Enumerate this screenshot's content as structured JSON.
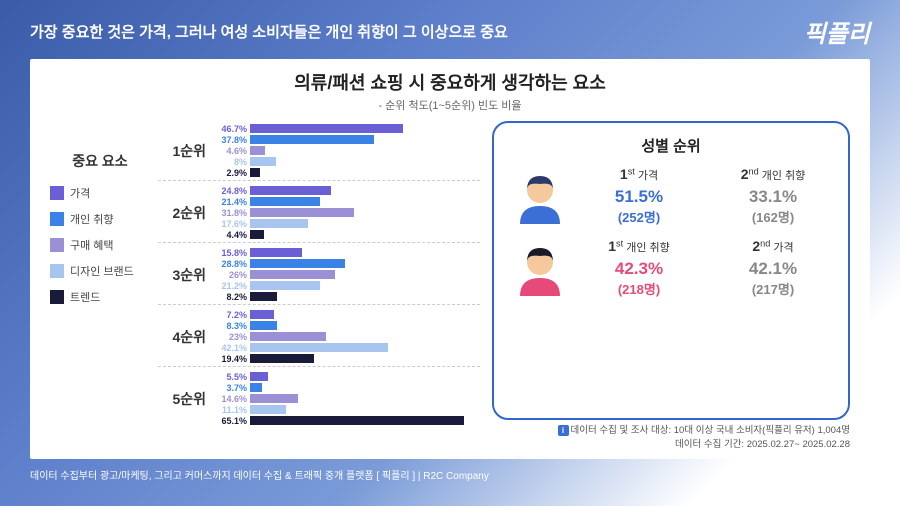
{
  "header": {
    "title": "가장 중요한 것은 가격, 그러나 여성 소비자들은 개인 취향이 그 이상으로 중요",
    "logo": "픽플리"
  },
  "card": {
    "title": "의류/패션 쇼핑 시 중요하게 생각하는 요소",
    "subtitle": "- 순위 척도(1~5순위) 빈도 비율"
  },
  "legend": {
    "title": "중요 요소",
    "items": [
      {
        "label": "가격",
        "color": "#6b5fd6"
      },
      {
        "label": "개인 취향",
        "color": "#3b82e6"
      },
      {
        "label": "구매 혜택",
        "color": "#9b8fd6"
      },
      {
        "label": "디자인 브랜드",
        "color": "#a8c5f0"
      },
      {
        "label": "트렌드",
        "color": "#1a1a3a"
      }
    ]
  },
  "ranks": [
    {
      "label": "1순위",
      "bars": [
        {
          "v": 46.7,
          "c": "#6b5fd6"
        },
        {
          "v": 37.8,
          "c": "#3b82e6"
        },
        {
          "v": 4.6,
          "c": "#9b8fd6"
        },
        {
          "v": 8.0,
          "c": "#a8c5f0"
        },
        {
          "v": 2.9,
          "c": "#1a1a3a"
        }
      ]
    },
    {
      "label": "2순위",
      "bars": [
        {
          "v": 24.8,
          "c": "#6b5fd6"
        },
        {
          "v": 21.4,
          "c": "#3b82e6"
        },
        {
          "v": 31.8,
          "c": "#9b8fd6"
        },
        {
          "v": 17.6,
          "c": "#a8c5f0"
        },
        {
          "v": 4.4,
          "c": "#1a1a3a"
        }
      ]
    },
    {
      "label": "3순위",
      "bars": [
        {
          "v": 15.8,
          "c": "#6b5fd6"
        },
        {
          "v": 28.8,
          "c": "#3b82e6"
        },
        {
          "v": 26.0,
          "c": "#9b8fd6"
        },
        {
          "v": 21.2,
          "c": "#a8c5f0"
        },
        {
          "v": 8.2,
          "c": "#1a1a3a"
        }
      ]
    },
    {
      "label": "4순위",
      "bars": [
        {
          "v": 7.2,
          "c": "#6b5fd6"
        },
        {
          "v": 8.3,
          "c": "#3b82e6"
        },
        {
          "v": 23.0,
          "c": "#9b8fd6"
        },
        {
          "v": 42.1,
          "c": "#a8c5f0"
        },
        {
          "v": 19.4,
          "c": "#1a1a3a"
        }
      ]
    },
    {
      "label": "5순위",
      "bars": [
        {
          "v": 5.5,
          "c": "#6b5fd6"
        },
        {
          "v": 3.7,
          "c": "#3b82e6"
        },
        {
          "v": 14.6,
          "c": "#9b8fd6"
        },
        {
          "v": 11.1,
          "c": "#a8c5f0"
        },
        {
          "v": 65.1,
          "c": "#1a1a3a"
        }
      ]
    }
  ],
  "max_bar": 70,
  "gender": {
    "title": "성별 순위",
    "male": {
      "avatar_hair": "#2a3a6a",
      "avatar_skin": "#f5c99b",
      "avatar_body": "#3b6fd6",
      "first": {
        "rank": "1",
        "sup": "st",
        "label": "가격",
        "pct": "51.5%",
        "cnt": "(252명)",
        "color": "#3b6fd6"
      },
      "second": {
        "rank": "2",
        "sup": "nd",
        "label": "개인 취향",
        "pct": "33.1%",
        "cnt": "(162명)",
        "color": "#888"
      }
    },
    "female": {
      "avatar_hair": "#1a1a2a",
      "avatar_skin": "#f5c99b",
      "avatar_body": "#e64a7a",
      "first": {
        "rank": "1",
        "sup": "st",
        "label": "개인 취향",
        "pct": "42.3%",
        "cnt": "(218명)",
        "color": "#e64a7a"
      },
      "second": {
        "rank": "2",
        "sup": "nd",
        "label": "가격",
        "pct": "42.1%",
        "cnt": "(217명)",
        "color": "#888"
      }
    }
  },
  "note": {
    "line1": "데이터 수집 및 조사 대상: 10대 이상 국내 소비자(픽플리 유저) 1,004명",
    "line2": "데이터 수집 기간: 2025.02.27~ 2025.02.28"
  },
  "footer": "데이터 수집부터 광고/마케팅, 그리고 커머스까지 데이터 수집 & 트래픽 중개 플랫폼 [ 픽플리 ]  |  R2C Company"
}
